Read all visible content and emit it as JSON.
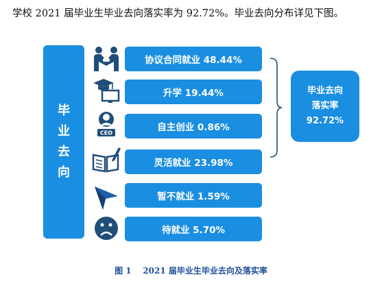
{
  "intro_text": "学校 2021 届毕业生毕业去向落实率为 92.72%。毕业去向分布详见下图。",
  "left_label": [
    "毕",
    "业",
    "去",
    "向"
  ],
  "items": [
    {
      "label": "协议合同就业 48.44%",
      "icon": "handshake-people-icon"
    },
    {
      "label": "升学 19.44%",
      "icon": "graduation-cap-screen-icon"
    },
    {
      "label": "自主创业 0.86%",
      "icon": "ceo-person-icon"
    },
    {
      "label": "灵活就业 23.98%",
      "icon": "open-book-pen-icon"
    },
    {
      "label": "暂不就业 1.59%",
      "icon": "paper-plane-icon"
    },
    {
      "label": "待就业 5.70%",
      "icon": "sad-face-icon"
    }
  ],
  "summary": {
    "line1": "毕业去向",
    "line2": "落实率",
    "value": "92.72%"
  },
  "caption": "图 1    2021 届毕业生毕业去向及落实率",
  "colors": {
    "accent": "#1a8ee1",
    "icon": "#1f4e79",
    "caption": "#1f4e9b"
  }
}
